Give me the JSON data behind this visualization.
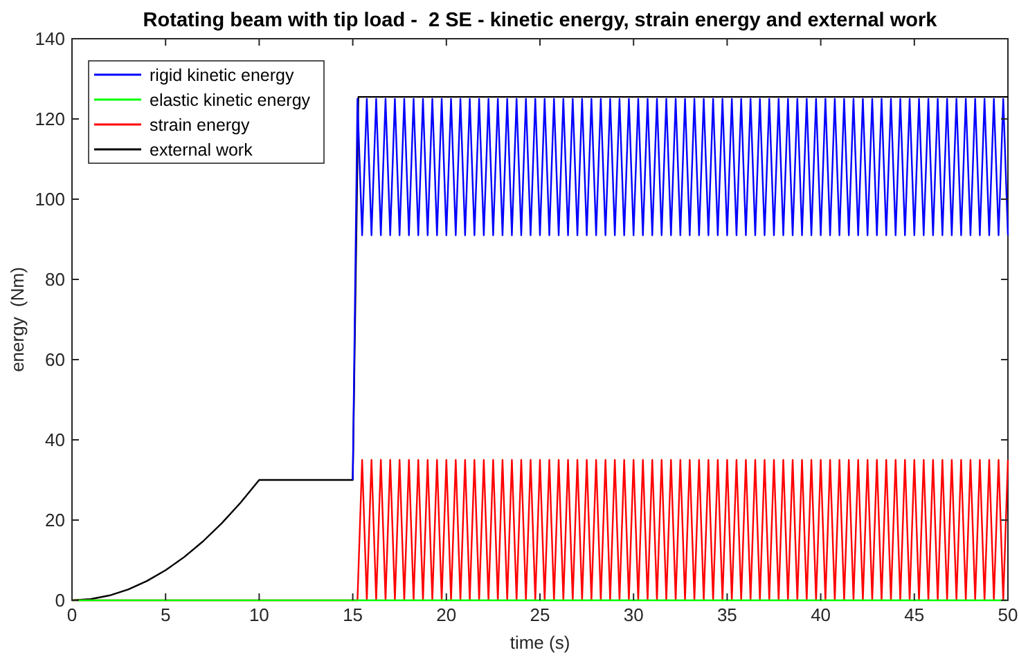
{
  "chart_data": {
    "type": "line",
    "title": "Rotating beam with tip load -  2 SE - kinetic energy, strain energy and external work",
    "xlabel": "time (s)",
    "ylabel": "energy  (Nm)",
    "xlim": [
      0,
      50
    ],
    "ylim": [
      0,
      140
    ],
    "xticks": [
      0,
      5,
      10,
      15,
      20,
      25,
      30,
      35,
      40,
      45,
      50
    ],
    "yticks": [
      0,
      20,
      40,
      60,
      80,
      100,
      120,
      140
    ],
    "grid": false,
    "legend": "top left",
    "marker": "none",
    "line_style": "solid",
    "series": [
      {
        "name": "rigid kinetic energy",
        "color": "#0000ff",
        "x": [
          15,
          15.25,
          15.5,
          15.75,
          16,
          16.25,
          16.5,
          16.75,
          17,
          17.25,
          17.5,
          17.75,
          18,
          18.25,
          18.5,
          18.75,
          19,
          19.25,
          19.5,
          19.75,
          20,
          20.25,
          20.5,
          20.75,
          21,
          21.25,
          21.5,
          21.75,
          22,
          22.25,
          22.5,
          22.75,
          23,
          23.25,
          23.5,
          23.75,
          24,
          24.25,
          24.5,
          24.75,
          25,
          25.25,
          25.5,
          25.75,
          26,
          26.25,
          26.5,
          26.75,
          27,
          27.25,
          27.5,
          27.75,
          28,
          28.25,
          28.5,
          28.75,
          29,
          29.25,
          29.5,
          29.75,
          30,
          30.25,
          30.5,
          30.75,
          31,
          31.25,
          31.5,
          31.75,
          32,
          32.25,
          32.5,
          32.75,
          33,
          33.25,
          33.5,
          33.75,
          34,
          34.25,
          34.5,
          34.75,
          35,
          35.25,
          35.5,
          35.75,
          36,
          36.25,
          36.5,
          36.75,
          37,
          37.25,
          37.5,
          37.75,
          38,
          38.25,
          38.5,
          38.75,
          39,
          39.25,
          39.5,
          39.75,
          40,
          40.25,
          40.5,
          40.75,
          41,
          41.25,
          41.5,
          41.75,
          42,
          42.25,
          42.5,
          42.75,
          43,
          43.25,
          43.5,
          43.75,
          44,
          44.25,
          44.5,
          44.75,
          45,
          45.25,
          45.5,
          45.75,
          46,
          46.25,
          46.5,
          46.75,
          47,
          47.25,
          47.5,
          47.75,
          48,
          48.25,
          48.5,
          48.75,
          49,
          49.25,
          49.5,
          49.75,
          50
        ],
        "values": [
          30,
          125,
          91,
          125,
          91,
          125,
          91,
          125,
          91,
          125,
          91,
          125,
          91,
          125,
          91,
          125,
          91,
          125,
          91,
          125,
          91,
          125,
          91,
          125,
          91,
          125,
          91,
          125,
          91,
          125,
          91,
          125,
          91,
          125,
          91,
          125,
          91,
          125,
          91,
          125,
          91,
          125,
          91,
          125,
          91,
          125,
          91,
          125,
          91,
          125,
          91,
          125,
          91,
          125,
          91,
          125,
          91,
          125,
          91,
          125,
          91,
          125,
          91,
          125,
          91,
          125,
          91,
          125,
          91,
          125,
          91,
          125,
          91,
          125,
          91,
          125,
          91,
          125,
          91,
          125,
          91,
          125,
          91,
          125,
          91,
          125,
          91,
          125,
          91,
          125,
          91,
          125,
          91,
          125,
          91,
          125,
          91,
          125,
          91,
          125,
          91,
          125,
          91,
          125,
          91,
          125,
          91,
          125,
          91,
          125,
          91,
          125,
          91,
          125,
          91,
          125,
          91,
          125,
          91,
          125,
          91,
          125,
          91,
          125,
          91,
          125,
          91,
          125,
          91,
          125,
          91,
          125,
          91,
          125,
          91,
          125,
          91,
          125,
          91,
          125,
          91
        ]
      },
      {
        "name": "elastic kinetic energy",
        "color": "#00ff00",
        "x": [
          0,
          5,
          10,
          15,
          20,
          25,
          30,
          35,
          40,
          45,
          50
        ],
        "values": [
          0,
          0,
          0,
          0,
          0,
          0,
          0,
          0,
          0,
          0,
          0
        ]
      },
      {
        "name": "strain energy",
        "color": "#ff0000",
        "x": [
          0,
          15,
          15.25,
          15.5,
          15.75,
          16,
          16.25,
          16.5,
          16.75,
          17,
          17.25,
          17.5,
          17.75,
          18,
          18.25,
          18.5,
          18.75,
          19,
          19.25,
          19.5,
          19.75,
          20,
          20.25,
          20.5,
          20.75,
          21,
          21.25,
          21.5,
          21.75,
          22,
          22.25,
          22.5,
          22.75,
          23,
          23.25,
          23.5,
          23.75,
          24,
          24.25,
          24.5,
          24.75,
          25,
          25.25,
          25.5,
          25.75,
          26,
          26.25,
          26.5,
          26.75,
          27,
          27.25,
          27.5,
          27.75,
          28,
          28.25,
          28.5,
          28.75,
          29,
          29.25,
          29.5,
          29.75,
          30,
          30.25,
          30.5,
          30.75,
          31,
          31.25,
          31.5,
          31.75,
          32,
          32.25,
          32.5,
          32.75,
          33,
          33.25,
          33.5,
          33.75,
          34,
          34.25,
          34.5,
          34.75,
          35,
          35.25,
          35.5,
          35.75,
          36,
          36.25,
          36.5,
          36.75,
          37,
          37.25,
          37.5,
          37.75,
          38,
          38.25,
          38.5,
          38.75,
          39,
          39.25,
          39.5,
          39.75,
          40,
          40.25,
          40.5,
          40.75,
          41,
          41.25,
          41.5,
          41.75,
          42,
          42.25,
          42.5,
          42.75,
          43,
          43.25,
          43.5,
          43.75,
          44,
          44.25,
          44.5,
          44.75,
          45,
          45.25,
          45.5,
          45.75,
          46,
          46.25,
          46.5,
          46.75,
          47,
          47.25,
          47.5,
          47.75,
          48,
          48.25,
          48.5,
          48.75,
          49,
          49.25,
          49.5,
          49.75,
          50
        ],
        "values": [
          0,
          0,
          0,
          35,
          0,
          35,
          0,
          35,
          0,
          35,
          0,
          35,
          0,
          35,
          0,
          35,
          0,
          35,
          0,
          35,
          0,
          35,
          0,
          35,
          0,
          35,
          0,
          35,
          0,
          35,
          0,
          35,
          0,
          35,
          0,
          35,
          0,
          35,
          0,
          35,
          0,
          35,
          0,
          35,
          0,
          35,
          0,
          35,
          0,
          35,
          0,
          35,
          0,
          35,
          0,
          35,
          0,
          35,
          0,
          35,
          0,
          35,
          0,
          35,
          0,
          35,
          0,
          35,
          0,
          35,
          0,
          35,
          0,
          35,
          0,
          35,
          0,
          35,
          0,
          35,
          0,
          35,
          0,
          35,
          0,
          35,
          0,
          35,
          0,
          35,
          0,
          35,
          0,
          35,
          0,
          35,
          0,
          35,
          0,
          35,
          0,
          35,
          0,
          35,
          0,
          35,
          0,
          35,
          0,
          35,
          0,
          35,
          0,
          35,
          0,
          35,
          0,
          35,
          0,
          35,
          0,
          35,
          0,
          35,
          0,
          35,
          0,
          35,
          0,
          35,
          0,
          35,
          0,
          35,
          0,
          35,
          0,
          35,
          0,
          35,
          0,
          35
        ]
      },
      {
        "name": "external work",
        "color": "#000000",
        "x": [
          0,
          1,
          2,
          3,
          4,
          5,
          6,
          7,
          8,
          9,
          10,
          15,
          15.3,
          50
        ],
        "values": [
          0,
          0.3,
          1.2,
          2.7,
          4.8,
          7.5,
          10.8,
          14.7,
          19.2,
          24.3,
          30,
          30,
          125.5,
          125.5
        ]
      }
    ]
  }
}
